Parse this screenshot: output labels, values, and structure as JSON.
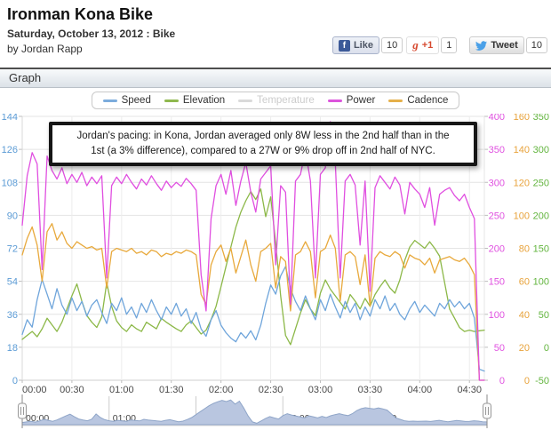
{
  "page": {
    "title": "Ironman Kona Bike",
    "subtitle": "Saturday, October 13, 2012 : Bike",
    "byline": "by Jordan Rapp"
  },
  "social": {
    "facebook_icon_letter": "f",
    "like_label": "Like",
    "like_count": "10",
    "gplus_icon_letter": "g",
    "gplus_label": "+1",
    "gplus_count": "1",
    "tweet_label": "Tweet",
    "tweet_count": "10"
  },
  "graph_section": {
    "title": "Graph"
  },
  "annotation": {
    "line1": "Jordan's pacing: in Kona, Jordan averaged only 8W less in the 2nd half than in the",
    "line2": "1st (a 3% difference), compared to a 27W or 9% drop off in 2nd half of NYC."
  },
  "chart_data": {
    "type": "line",
    "title": "",
    "duration_minutes": 279,
    "sample_interval_minutes": 3,
    "x_tick_minutes": [
      0,
      30,
      60,
      90,
      120,
      150,
      180,
      210,
      240,
      270
    ],
    "x_tick_labels": [
      "00:00",
      "00:30",
      "01:00",
      "01:30",
      "02:00",
      "02:30",
      "03:00",
      "03:30",
      "04:00",
      "04:30"
    ],
    "grid": true,
    "legend_position": "top-center",
    "legend": [
      {
        "label": "Speed",
        "color": "#7CACDC",
        "enabled": true
      },
      {
        "label": "Elevation",
        "color": "#8FB84E",
        "enabled": true
      },
      {
        "label": "Temperature",
        "color": "#DADADA",
        "enabled": false
      },
      {
        "label": "Power",
        "color": "#DC55DC",
        "enabled": true
      },
      {
        "label": "Cadence",
        "color": "#E5B04A",
        "enabled": true
      }
    ],
    "axes": {
      "speed": {
        "side": "left",
        "min": 0,
        "max": 144,
        "tick_step": 18,
        "color": "#5B9BD5"
      },
      "power": {
        "side": "right",
        "min": 0,
        "max": 400,
        "tick_step": 50,
        "color": "#E052E0"
      },
      "cadence": {
        "side": "right",
        "min": 0,
        "max": 160,
        "tick_step": 20,
        "color": "#E8A33C"
      },
      "elevation": {
        "side": "right",
        "min": -50,
        "max": 350,
        "tick_step": 50,
        "color": "#63B53F"
      }
    },
    "series": [
      {
        "name": "Elevation",
        "axis": "elevation",
        "color": "#8CB848",
        "values": [
          12,
          18,
          24,
          16,
          28,
          44,
          34,
          24,
          38,
          58,
          78,
          96,
          70,
          48,
          38,
          30,
          46,
          98,
          62,
          40,
          30,
          24,
          34,
          28,
          24,
          38,
          33,
          28,
          44,
          38,
          33,
          28,
          24,
          34,
          40,
          30,
          20,
          26,
          42,
          62,
          92,
          122,
          152,
          182,
          205,
          222,
          236,
          224,
          240,
          198,
          228,
          158,
          78,
          18,
          4,
          28,
          52,
          72,
          58,
          48,
          82,
          102,
          88,
          78,
          68,
          58,
          80,
          70,
          58,
          74,
          62,
          80,
          92,
          102,
          90,
          82,
          102,
          132,
          152,
          162,
          156,
          150,
          160,
          150,
          138,
          98,
          58,
          44,
          30,
          24,
          26,
          24,
          25,
          26
        ]
      },
      {
        "name": "Speed",
        "axis": "speed",
        "color": "#6FA5DB",
        "values": [
          25,
          33,
          29,
          44,
          55,
          47,
          39,
          50,
          41,
          36,
          45,
          38,
          43,
          35,
          41,
          44,
          37,
          31,
          42,
          38,
          45,
          36,
          40,
          34,
          42,
          37,
          44,
          38,
          33,
          40,
          36,
          42,
          35,
          39,
          31,
          37,
          28,
          24,
          33,
          38,
          30,
          26,
          23,
          21,
          26,
          23,
          27,
          22,
          30,
          42,
          52,
          47,
          57,
          62,
          50,
          43,
          38,
          46,
          39,
          33,
          44,
          38,
          47,
          40,
          34,
          43,
          37,
          42,
          33,
          40,
          35,
          44,
          39,
          46,
          38,
          42,
          36,
          33,
          39,
          43,
          37,
          41,
          38,
          35,
          42,
          39,
          44,
          40,
          43,
          39,
          42,
          34,
          6,
          5
        ]
      },
      {
        "name": "Cadence",
        "axis": "cadence",
        "color": "#E8A93C",
        "values": [
          76,
          86,
          93,
          82,
          60,
          90,
          95,
          85,
          90,
          83,
          80,
          84,
          82,
          80,
          81,
          79,
          80,
          56,
          78,
          80,
          79,
          78,
          80,
          77,
          78,
          76,
          79,
          78,
          75,
          77,
          76,
          78,
          77,
          79,
          78,
          76,
          52,
          46,
          70,
          78,
          82,
          72,
          80,
          65,
          75,
          85,
          70,
          60,
          78,
          80,
          83,
          56,
          75,
          72,
          42,
          76,
          78,
          84,
          78,
          50,
          78,
          80,
          88,
          80,
          48,
          76,
          78,
          75,
          58,
          76,
          45,
          74,
          78,
          76,
          75,
          78,
          76,
          68,
          76,
          74,
          73,
          70,
          74,
          65,
          73,
          74,
          75,
          73,
          72,
          74,
          70,
          64,
          0,
          0
        ]
      },
      {
        "name": "Power",
        "axis": "power",
        "color": "#E04FE0",
        "values": [
          235,
          310,
          345,
          328,
          168,
          340,
          318,
          305,
          322,
          298,
          312,
          300,
          315,
          295,
          308,
          298,
          310,
          155,
          295,
          308,
          298,
          312,
          300,
          290,
          305,
          296,
          310,
          298,
          288,
          302,
          292,
          300,
          294,
          306,
          298,
          288,
          160,
          105,
          245,
          295,
          312,
          282,
          318,
          265,
          302,
          330,
          285,
          255,
          305,
          315,
          325,
          175,
          295,
          285,
          115,
          302,
          312,
          348,
          302,
          155,
          312,
          322,
          392,
          330,
          155,
          302,
          312,
          296,
          205,
          302,
          135,
          292,
          310,
          300,
          290,
          308,
          296,
          252,
          300,
          290,
          282,
          262,
          292,
          235,
          282,
          288,
          292,
          280,
          272,
          282,
          262,
          245,
          0,
          0
        ]
      }
    ],
    "navigator": {
      "tick_hours": [
        0,
        1,
        2,
        3,
        4
      ],
      "tick_labels": [
        "00:00",
        "01:00",
        "02:00",
        "03:00",
        "04:00"
      ],
      "fill": "#B9C6E0",
      "line": "#8FA5C8",
      "values": [
        12,
        18,
        24,
        16,
        28,
        44,
        34,
        24,
        38,
        58,
        78,
        96,
        70,
        48,
        38,
        30,
        46,
        98,
        62,
        40,
        30,
        24,
        34,
        28,
        24,
        38,
        33,
        28,
        44,
        38,
        33,
        28,
        24,
        34,
        40,
        30,
        20,
        26,
        42,
        62,
        92,
        122,
        152,
        182,
        205,
        222,
        236,
        224,
        240,
        198,
        228,
        158,
        78,
        18,
        4,
        28,
        52,
        72,
        58,
        48,
        82,
        102,
        88,
        78,
        68,
        58,
        80,
        70,
        58,
        74,
        62,
        80,
        92,
        102,
        90,
        82,
        102,
        132,
        152,
        162,
        156,
        150,
        160,
        150,
        138,
        98,
        58,
        44,
        30,
        24,
        26,
        24,
        25,
        26,
        22,
        28,
        34,
        26,
        20,
        26,
        32,
        28,
        22,
        24,
        30,
        26,
        20,
        18
      ]
    }
  }
}
